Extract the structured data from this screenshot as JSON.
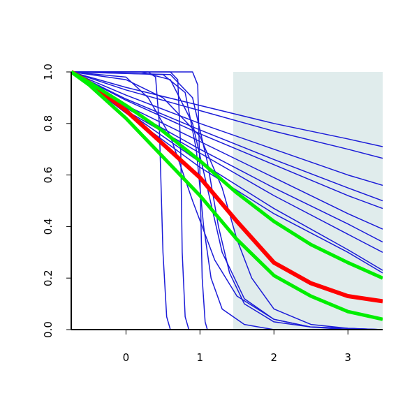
{
  "chart_data": {
    "type": "line",
    "xlim": [
      -0.74,
      3.47
    ],
    "ylim": [
      0,
      1
    ],
    "xticks": [
      0,
      1,
      2,
      3
    ],
    "yticks": [
      {
        "value": 0,
        "label": "0.0"
      },
      0.2,
      0.4,
      0.6,
      0.8,
      {
        "value": 1,
        "label": "1.0"
      }
    ],
    "shade": {
      "x0": 1.45,
      "color": "#e0ecec"
    },
    "series": [
      {
        "color": "#1c1cd8",
        "width": 1.5,
        "x": [
          -0.74,
          0,
          1,
          2,
          3,
          3.47
        ],
        "values": [
          1,
          0.94,
          0.87,
          0.8,
          0.74,
          0.71
        ]
      },
      {
        "color": "#1c1cd8",
        "width": 1.5,
        "x": [
          -0.74,
          0,
          1,
          2,
          3,
          3.47
        ],
        "values": [
          1,
          0.93,
          0.85,
          0.77,
          0.7,
          0.665
        ]
      },
      {
        "color": "#1c1cd8",
        "width": 1.5,
        "x": [
          -0.74,
          0,
          1,
          2,
          3,
          3.47
        ],
        "values": [
          1,
          0.91,
          0.8,
          0.7,
          0.6,
          0.56
        ]
      },
      {
        "color": "#1c1cd8",
        "width": 1.5,
        "x": [
          -0.74,
          0,
          1,
          2,
          3,
          3.47
        ],
        "values": [
          1,
          0.895,
          0.775,
          0.66,
          0.55,
          0.5
        ]
      },
      {
        "color": "#1c1cd8",
        "width": 1.5,
        "x": [
          -0.74,
          0,
          1,
          2,
          3,
          3.47
        ],
        "values": [
          1,
          0.89,
          0.76,
          0.64,
          0.52,
          0.47
        ]
      },
      {
        "color": "#1c1cd8",
        "width": 1.5,
        "x": [
          -0.74,
          0,
          1,
          2,
          3,
          3.47
        ],
        "values": [
          1,
          0.87,
          0.73,
          0.59,
          0.45,
          0.39
        ]
      },
      {
        "color": "#1c1cd8",
        "width": 1.5,
        "x": [
          -0.74,
          0,
          1,
          2,
          3,
          3.47
        ],
        "values": [
          1,
          0.86,
          0.7,
          0.55,
          0.41,
          0.34
        ]
      },
      {
        "color": "#1c1cd8",
        "width": 1.5,
        "x": [
          -0.74,
          0,
          1,
          2,
          3,
          3.47
        ],
        "values": [
          1,
          0.85,
          0.685,
          0.52,
          0.37,
          0.3
        ]
      },
      {
        "color": "#1c1cd8",
        "width": 1.5,
        "x": [
          -0.74,
          0,
          1,
          2,
          3,
          3.47
        ],
        "values": [
          1,
          0.85,
          0.65,
          0.47,
          0.31,
          0.23
        ]
      },
      {
        "color": "#1c1cd8",
        "width": 1.5,
        "x": [
          -0.74,
          0,
          1,
          2,
          3,
          3.47
        ],
        "values": [
          1,
          0.84,
          0.63,
          0.45,
          0.3,
          0.22
        ]
      },
      {
        "color": "#1c1cd8",
        "width": 1.5,
        "x": [
          -0.74,
          0.3,
          0.4,
          0.45,
          0.5,
          0.55,
          0.6,
          3.47
        ],
        "values": [
          1,
          1,
          0.98,
          0.8,
          0.3,
          0.05,
          0,
          0
        ]
      },
      {
        "color": "#1c1cd8",
        "width": 1.5,
        "x": [
          -0.74,
          0.6,
          0.7,
          0.74,
          0.76,
          0.8,
          0.85,
          3.47
        ],
        "values": [
          1,
          1,
          0.97,
          0.7,
          0.3,
          0.05,
          0,
          0
        ]
      },
      {
        "color": "#1c1cd8",
        "width": 1.5,
        "x": [
          -0.74,
          0.9,
          0.97,
          1.0,
          1.03,
          1.07,
          1.1,
          3.47
        ],
        "values": [
          1,
          1,
          0.95,
          0.6,
          0.2,
          0.03,
          0,
          0
        ]
      },
      {
        "color": "#1c1cd8",
        "width": 1.5,
        "x": [
          -0.74,
          0.5,
          0.8,
          0.95,
          1.05,
          1.15,
          1.3,
          1.6,
          2,
          3.47
        ],
        "values": [
          1,
          0.99,
          0.92,
          0.7,
          0.4,
          0.2,
          0.08,
          0.02,
          0,
          0
        ]
      },
      {
        "color": "#1c1cd8",
        "width": 1.5,
        "x": [
          -0.74,
          0.6,
          0.9,
          1.1,
          1.25,
          1.4,
          1.6,
          2,
          2.5,
          3.47
        ],
        "values": [
          1,
          0.99,
          0.9,
          0.65,
          0.4,
          0.22,
          0.1,
          0.03,
          0.01,
          0
        ]
      },
      {
        "color": "#1c1cd8",
        "width": 1.5,
        "x": [
          -0.74,
          0,
          0.5,
          1,
          1.3,
          1.5,
          1.7,
          2,
          2.5,
          3,
          3.47
        ],
        "values": [
          1,
          0.97,
          0.9,
          0.75,
          0.55,
          0.35,
          0.2,
          0.08,
          0.02,
          0.005,
          0
        ]
      },
      {
        "color": "#1c1cd8",
        "width": 1.5,
        "x": [
          -0.74,
          0,
          0.3,
          0.6,
          0.9,
          1.2,
          1.5,
          2,
          2.5,
          3,
          3.47
        ],
        "values": [
          1,
          0.98,
          0.9,
          0.75,
          0.5,
          0.27,
          0.13,
          0.04,
          0.01,
          0,
          0
        ]
      },
      {
        "color": "#1c1cd8",
        "width": 1.5,
        "x": [
          -0.74,
          0.2,
          0.6,
          0.9,
          1.1,
          1.3,
          1.6,
          2,
          2.5,
          3.47
        ],
        "values": [
          1,
          1,
          0.97,
          0.8,
          0.55,
          0.3,
          0.12,
          0.04,
          0.01,
          0
        ]
      },
      {
        "color": "#ff0000",
        "width": 6,
        "x": [
          -0.74,
          -0.5,
          0,
          0.5,
          1,
          1.5,
          2,
          2.5,
          3,
          3.47
        ],
        "values": [
          1,
          0.96,
          0.85,
          0.72,
          0.59,
          0.42,
          0.26,
          0.18,
          0.13,
          0.11
        ]
      },
      {
        "color": "#00ee00",
        "width": 5,
        "x": [
          -0.74,
          -0.5,
          0,
          0.5,
          1,
          1.5,
          2,
          2.5,
          3,
          3.47
        ],
        "values": [
          1,
          0.96,
          0.87,
          0.77,
          0.655,
          0.53,
          0.42,
          0.33,
          0.26,
          0.2
        ]
      },
      {
        "color": "#00ee00",
        "width": 5,
        "x": [
          -0.74,
          -0.5,
          0,
          0.5,
          1,
          1.5,
          2,
          2.5,
          3,
          3.47
        ],
        "values": [
          1,
          0.95,
          0.82,
          0.67,
          0.52,
          0.35,
          0.21,
          0.13,
          0.07,
          0.04
        ]
      }
    ]
  }
}
